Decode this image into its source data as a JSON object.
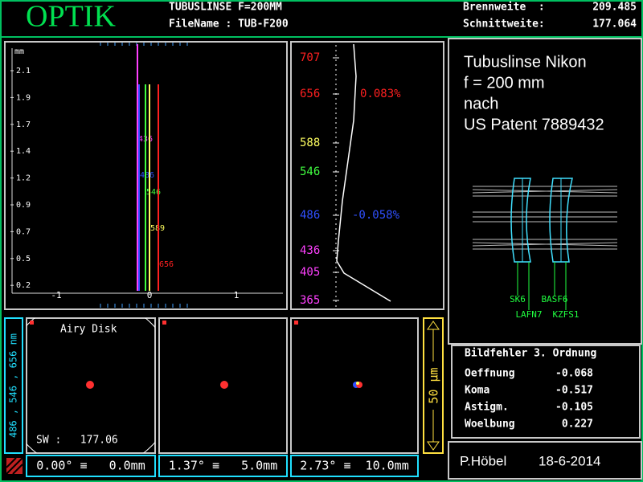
{
  "header": {
    "title": "OPTIK",
    "lens": "TUBUSLINSE F=200MM",
    "file": "FileName : TUB-F200",
    "focal_label": "Brennweite  :",
    "focal": "209.485",
    "back_label": "Schnittweite:",
    "back": "177.064"
  },
  "longitudinal": {
    "unit": "mm",
    "y_labels": [
      "2.1",
      "1.9",
      "1.7",
      "1.4",
      "1.2",
      "0.9",
      "0.7",
      "0.5",
      "0.2"
    ],
    "x_labels": [
      "-1",
      "0",
      "1"
    ],
    "curves": [
      {
        "label": "436",
        "color": "#ff40ff"
      },
      {
        "label": "486",
        "color": "#3050ff"
      },
      {
        "label": "546",
        "color": "#40ff40"
      },
      {
        "label": "589",
        "color": "#ffff60"
      },
      {
        "label": "656",
        "color": "#ff2020"
      }
    ]
  },
  "spectrum": {
    "wavelengths": [
      {
        "label": "707",
        "color": "#ff2020"
      },
      {
        "label": "656",
        "color": "#ff2020"
      },
      {
        "label": "588",
        "color": "#ffff60"
      },
      {
        "label": "546",
        "color": "#40ff40"
      },
      {
        "label": "486",
        "color": "#3050ff"
      },
      {
        "label": "436",
        "color": "#ff40ff"
      },
      {
        "label": "405",
        "color": "#ff40ff"
      },
      {
        "label": "365",
        "color": "#ff40ff"
      }
    ],
    "percent": [
      {
        "label": "0.083%",
        "color": "#ff2020"
      },
      {
        "label": "-0.058%",
        "color": "#3050ff"
      }
    ]
  },
  "description": [
    "Tubuslinse Nikon",
    "f = 200 mm",
    "nach",
    "US Patent 7889432"
  ],
  "glasses": [
    "SK6",
    "BASF6",
    "LAFN7",
    "KZFS1"
  ],
  "aberrations": {
    "title": "Bildfehler 3. Ordnung",
    "rows": [
      [
        "Oeffnung",
        "-0.068"
      ],
      [
        "Koma",
        "-0.517"
      ],
      [
        "Astigm.",
        "-0.105"
      ],
      [
        "Woelbung",
        "0.227"
      ]
    ]
  },
  "spots": {
    "wavelengths": "486 , 546 , 656 nm",
    "airy": "Airy Disk",
    "sw": "SW :   177.06",
    "fields": [
      "0.00° ≡   0.0mm",
      "1.37° ≡   5.0mm",
      "2.73° ≡  10.0mm"
    ],
    "scale": "50 µm"
  },
  "footer": {
    "author": "P.Höbel",
    "date": "18-6-2014"
  }
}
